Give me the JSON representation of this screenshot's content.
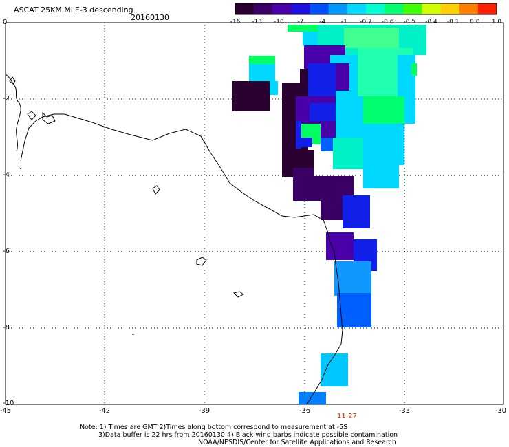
{
  "header": {
    "title": "ASCAT 25KM MLE-3 descending",
    "date": "20160130"
  },
  "colorbar": {
    "labels": [
      "-16",
      "-13",
      "-10",
      "-7",
      "-4",
      "-1",
      "-0.7",
      "-0.6",
      "-0.5",
      "-0.4",
      "-0.1",
      "0.0",
      "1.0"
    ],
    "colors": [
      "#2a0030",
      "#3a0066",
      "#4a00a8",
      "#2010e0",
      "#0050ff",
      "#0098ff",
      "#00d8ff",
      "#00ffd0",
      "#00ff70",
      "#40ff00",
      "#d0ff00",
      "#ffd000",
      "#ff8000",
      "#ff2000"
    ]
  },
  "axes": {
    "x_ticks": [
      "-45",
      "-42",
      "-39",
      "-36",
      "-33",
      "-30"
    ],
    "y_ticks": [
      "0",
      "-2",
      "-4",
      "-6",
      "-8",
      "-10"
    ]
  },
  "time_label": "11:27",
  "notes": {
    "line1": "Note: 1) Times are GMT 2)Times along bottom correspond to measurement at -5S",
    "line2": "3)Data buffer is 22 hrs from 20160130 4) Black wind barbs indicate possible contamination",
    "line3": "NOAA/NESDIS/Center for Satellite Applications and Research"
  },
  "swath_colors": {
    "dark_purple": "#2a0030",
    "purple": "#3a0066",
    "violet": "#4a00a8",
    "blue": "#1020e8",
    "mid_blue": "#0060ff",
    "sky_blue": "#1098ff",
    "cyan": "#00d8ff",
    "aqua": "#00f0c8",
    "green": "#00ff60",
    "time_red": "#ff2000"
  }
}
